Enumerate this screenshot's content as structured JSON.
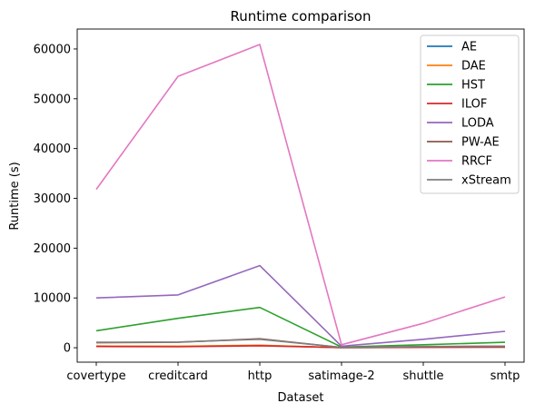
{
  "chart_data": {
    "type": "line",
    "title": "Runtime comparison",
    "xlabel": "Dataset",
    "ylabel": "Runtime (s)",
    "categories": [
      "covertype",
      "creditcard",
      "http",
      "satimage-2",
      "shuttle",
      "smtp"
    ],
    "ylim": [
      -2900,
      64000
    ],
    "yticks": [
      0,
      10000,
      20000,
      30000,
      40000,
      50000,
      60000
    ],
    "legend_position": "top-right",
    "grid": false,
    "series": [
      {
        "name": "AE",
        "color": "#1f77b4",
        "values": [
          300,
          250,
          450,
          20,
          120,
          150
        ]
      },
      {
        "name": "DAE",
        "color": "#ff7f0e",
        "values": [
          350,
          300,
          500,
          25,
          140,
          170
        ]
      },
      {
        "name": "HST",
        "color": "#2ca02c",
        "values": [
          3400,
          5900,
          8100,
          150,
          600,
          1100
        ]
      },
      {
        "name": "ILOF",
        "color": "#d62728",
        "values": [
          250,
          200,
          400,
          15,
          80,
          100
        ]
      },
      {
        "name": "LODA",
        "color": "#9467bd",
        "values": [
          10000,
          10600,
          16500,
          300,
          1700,
          3300
        ]
      },
      {
        "name": "PW-AE",
        "color": "#8c564b",
        "values": [
          1000,
          1100,
          1800,
          60,
          200,
          300
        ]
      },
      {
        "name": "RRCF",
        "color": "#e377c2",
        "values": [
          31800,
          54500,
          60900,
          600,
          4900,
          10200
        ]
      },
      {
        "name": "xStream",
        "color": "#7f7f7f",
        "values": [
          1100,
          1150,
          1700,
          80,
          250,
          320
        ]
      }
    ]
  }
}
